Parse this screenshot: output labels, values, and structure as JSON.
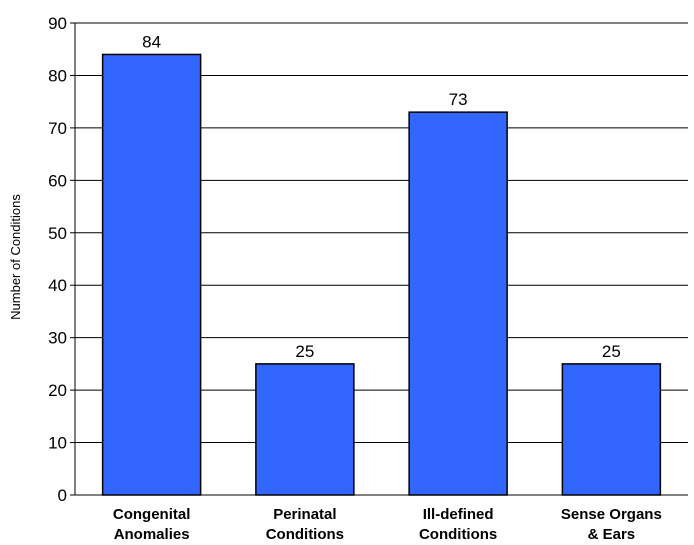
{
  "chart_data": {
    "type": "bar",
    "title": "",
    "xlabel": "",
    "ylabel": "Number of Conditions",
    "categories": [
      [
        "Congenital",
        "Anomalies"
      ],
      [
        "Perinatal",
        "Conditions"
      ],
      [
        "Ill-defined",
        "Conditions"
      ],
      [
        "Sense  Organs",
        "& Ears"
      ]
    ],
    "values": [
      84,
      25,
      73,
      25
    ],
    "ylim": [
      0,
      90
    ],
    "yticks": [
      0,
      10,
      20,
      30,
      40,
      50,
      60,
      70,
      80,
      90
    ],
    "grid": true,
    "legend": "none",
    "bar_color": "#3366ff",
    "bar_edge_color": "#000000"
  }
}
